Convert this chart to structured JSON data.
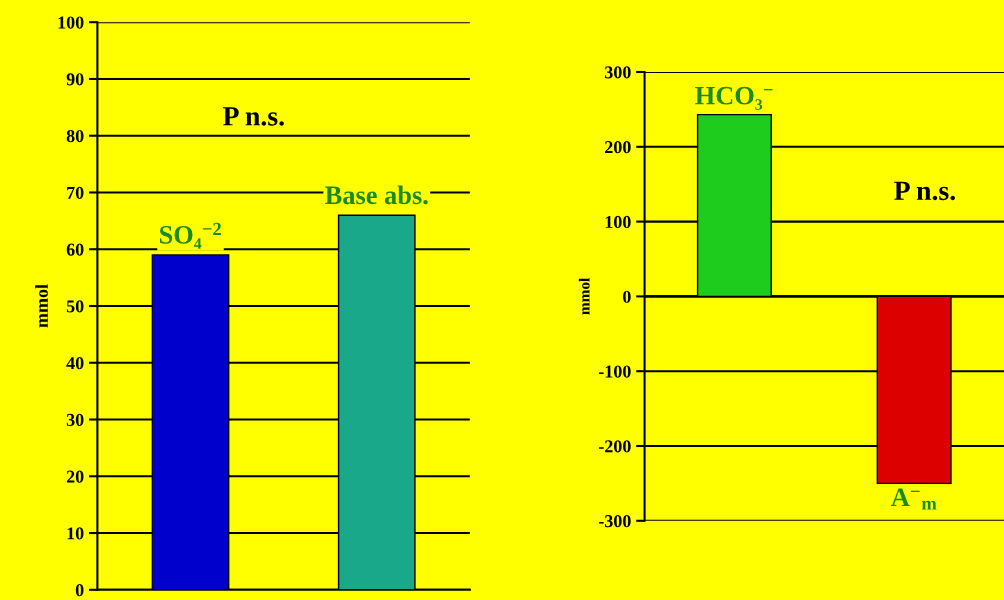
{
  "chart_data": [
    {
      "type": "bar",
      "ylabel": "mmol",
      "categories": [
        "SO₄$^{−2}$",
        "Base abs."
      ],
      "values": [
        59,
        66
      ],
      "colors": [
        "#0000cc",
        "#1aa88a"
      ],
      "ylim": [
        0,
        100
      ],
      "yticks": [
        0,
        10,
        20,
        30,
        40,
        50,
        60,
        70,
        80,
        90,
        100
      ],
      "grid": "y",
      "annotations": [
        "P n.s."
      ]
    },
    {
      "type": "bar",
      "ylabel": "mmol",
      "categories": [
        "HCO₃$^{−}$",
        "A$^{−}$$_{m}$"
      ],
      "values": [
        243,
        -250
      ],
      "colors": [
        "#1ecc1e",
        "#dd0000"
      ],
      "ylim": [
        -300,
        300
      ],
      "yticks": [
        -300,
        -200,
        -100,
        0,
        100,
        200,
        300
      ],
      "grid": "y",
      "annotations": [
        "P n.s."
      ]
    }
  ]
}
